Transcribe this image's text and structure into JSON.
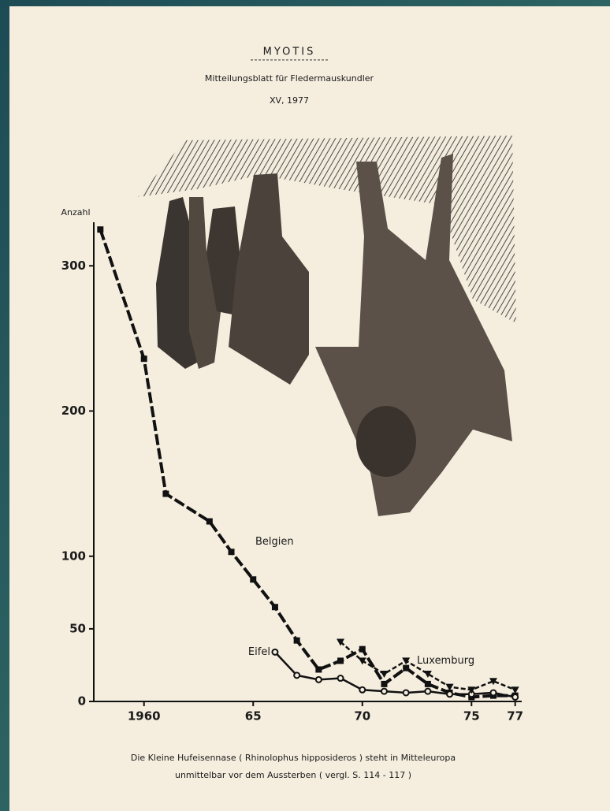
{
  "chart_data": {
    "type": "line",
    "title": "MYOTIS",
    "subtitle": [
      "Mitteilungsblatt für Fledermauskundler",
      "XV, 1977"
    ],
    "caption": [
      "Die Kleine Hufeisennase ( Rhinolophus hipposideros ) steht in Mitteleuropa",
      "unmittelbar vor dem Aussterben ( vergl. S. 114 - 117 )"
    ],
    "y_label": "Anzahl",
    "xlim": [
      1957.7,
      1977.3
    ],
    "xticks": [
      1960,
      {
        "value": 1965,
        "label": "65"
      },
      {
        "value": 1970,
        "label": "70"
      },
      {
        "value": 1975,
        "label": "75"
      },
      {
        "value": 1977,
        "label": "77"
      }
    ],
    "ylim": [
      0,
      330
    ],
    "yticks": [
      0,
      50,
      100,
      200,
      300
    ],
    "grid": false,
    "series": [
      {
        "name": "Belgien",
        "color": "#111111",
        "marker": "square",
        "dash": "long",
        "x": [
          1958,
          1960,
          1961,
          1963,
          1964,
          1965,
          1966,
          1967,
          1968,
          1969,
          1970,
          1971,
          1972,
          1973,
          1974,
          1975,
          1976,
          1977
        ],
        "values": [
          325,
          236,
          143,
          124,
          103,
          84,
          65,
          42,
          22,
          28,
          36,
          12,
          23,
          12,
          6,
          3,
          4,
          4
        ]
      },
      {
        "name": "Eifel",
        "color": "#111111",
        "marker": "circle",
        "dash": "solid",
        "x": [
          1966,
          1967,
          1968,
          1969,
          1970,
          1971,
          1972,
          1973,
          1974,
          1975,
          1976,
          1977
        ],
        "values": [
          34,
          18,
          15,
          16,
          8,
          7,
          6,
          7,
          5,
          5,
          6,
          3
        ]
      },
      {
        "name": "Luxemburg",
        "color": "#111111",
        "marker": "triangle",
        "dash": "short",
        "x": [
          1969,
          1970,
          1971,
          1972,
          1973,
          1974,
          1975,
          1976,
          1977
        ],
        "values": [
          41,
          28,
          19,
          28,
          19,
          10,
          8,
          14,
          8
        ]
      }
    ]
  }
}
